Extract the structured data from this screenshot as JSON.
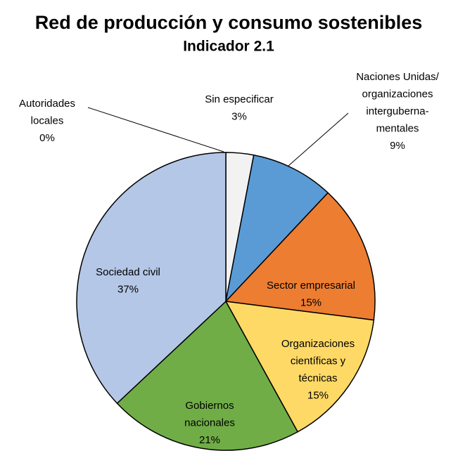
{
  "chart_data": {
    "type": "pie",
    "title": "Red de producción y consumo sostenibles",
    "subtitle": "Indicador 2.1",
    "categories": [
      [
        "Autoridades",
        "locales"
      ],
      [
        "Sin especificar"
      ],
      [
        "Naciones Unidas/",
        "organizaciones",
        "interguberna-",
        "mentales"
      ],
      [
        "Sector empresarial"
      ],
      [
        "Organizaciones",
        "científicas y",
        "técnicas"
      ],
      [
        "Gobiernos",
        "nacionales"
      ],
      [
        "Sociedad civil"
      ]
    ],
    "values": [
      0,
      3,
      9,
      15,
      15,
      21,
      37
    ],
    "value_labels": [
      "0%",
      "3%",
      "9%",
      "15%",
      "15%",
      "21%",
      "37%"
    ],
    "colors": [
      "#ffffff",
      "#f2f2f2",
      "#5b9bd5",
      "#ed7d31",
      "#ffd966",
      "#70ad47",
      "#b4c7e7"
    ]
  }
}
